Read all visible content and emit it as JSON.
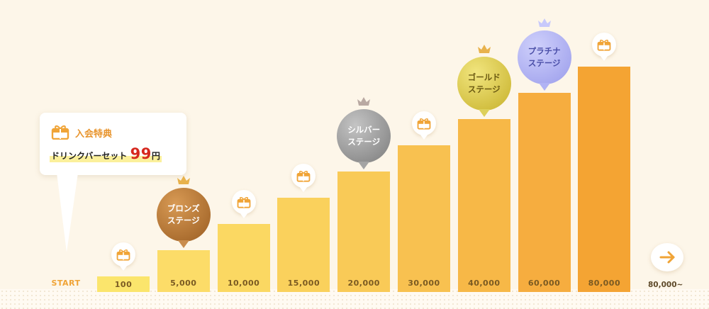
{
  "welcome": {
    "title": "入会特典",
    "text": "ドリンクバーセット",
    "price": "99",
    "unit": "円",
    "icon": "gift-icon"
  },
  "start_label": "START",
  "end_label": "80,000~",
  "colors": {
    "accent": "#f0a437",
    "price": "#d6281e",
    "bronze": "#b6752e",
    "silver": "#8a8a8a",
    "gold": "#d7c23a",
    "platinum": "#a9abf0"
  },
  "tiers": [
    {
      "label": "100",
      "value": 100,
      "marker": "gift-icon"
    },
    {
      "label": "5,000",
      "value": 5000,
      "marker": "stage",
      "stage_text": "ブロンズ\nステージ",
      "stage_key": "bronze"
    },
    {
      "label": "10,000",
      "value": 10000,
      "marker": "gift-icon"
    },
    {
      "label": "15,000",
      "value": 15000,
      "marker": "gift-icon"
    },
    {
      "label": "20,000",
      "value": 20000,
      "marker": "stage",
      "stage_text": "シルバー\nステージ",
      "stage_key": "silver"
    },
    {
      "label": "30,000",
      "value": 30000,
      "marker": "gift-icon"
    },
    {
      "label": "40,000",
      "value": 40000,
      "marker": "stage",
      "stage_text": "ゴールド\nステージ",
      "stage_key": "gold"
    },
    {
      "label": "60,000",
      "value": 60000,
      "marker": "stage",
      "stage_text": "プラチナ\nステージ",
      "stage_key": "platinum"
    },
    {
      "label": "80,000",
      "value": 80000,
      "marker": "gift-icon"
    }
  ],
  "end_icon": "arrow-right-icon"
}
